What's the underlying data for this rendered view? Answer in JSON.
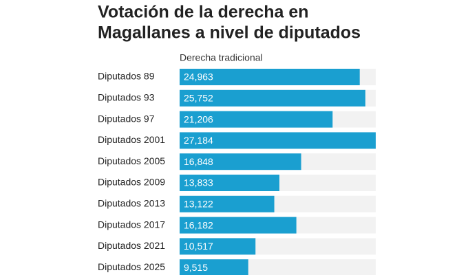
{
  "chart_data": {
    "type": "bar",
    "orientation": "horizontal",
    "title": [
      "Votación de la derecha en",
      "Magallanes a nivel de diputados"
    ],
    "categories": [
      "Diputados 89",
      "Diputados 93",
      "Diputados 97",
      "Diputados 2001",
      "Diputados 2005",
      "Diputados 2009",
      "Diputados 2013",
      "Diputados 2017",
      "Diputados 2021",
      "Diputados 2025"
    ],
    "series": [
      {
        "name": "Derecha tradicional",
        "color": "#1a9fd0",
        "values": [
          24963,
          25752,
          21206,
          27184,
          16848,
          13833,
          13122,
          16182,
          10517,
          9515
        ],
        "value_labels": [
          "24,963",
          "25,752",
          "21,206",
          "27,184",
          "16,848",
          "13,833",
          "13,122",
          "16,182",
          "10,517",
          "9,515"
        ]
      }
    ],
    "xlim": [
      0,
      27184
    ],
    "track_color": "#f2f2f2"
  }
}
